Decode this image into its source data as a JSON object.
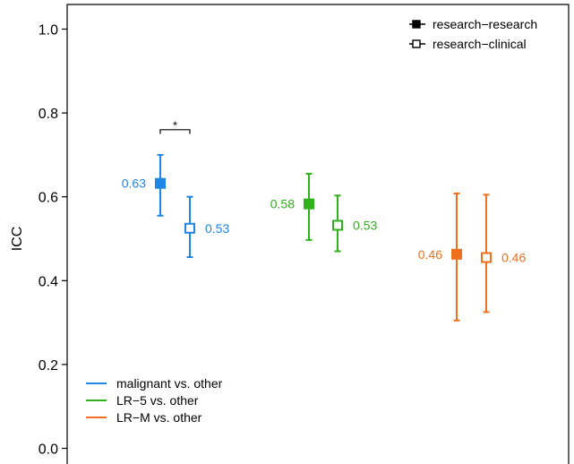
{
  "chart_data": {
    "type": "scatter",
    "ylabel": "ICC",
    "xlabel": "",
    "ylim": [
      0,
      1.0
    ],
    "yticks": [
      "0.0",
      "0.2",
      "0.4",
      "0.6",
      "0.8",
      "1.0"
    ],
    "grid": false,
    "legend_comparison": {
      "placement": "top-right",
      "items": [
        {
          "label": "research−research",
          "marker": "filled-square"
        },
        {
          "label": "research−clinical",
          "marker": "open-square"
        }
      ]
    },
    "legend_groups": {
      "placement": "bottom-left",
      "items": [
        {
          "label": "malignant vs. other",
          "color": "#1f86e8"
        },
        {
          "label": "LR−5 vs. other",
          "color": "#2fb11b"
        },
        {
          "label": "LR−M vs. other",
          "color": "#f0701e"
        }
      ]
    },
    "groups": [
      {
        "name": "malignant vs. other",
        "color": "#1f86e8",
        "points": [
          {
            "comparison": "research−research",
            "filled": true,
            "y": 0.632,
            "lower": 0.555,
            "upper": 0.7,
            "label": "0.63",
            "label_side": "left"
          },
          {
            "comparison": "research−clinical",
            "filled": false,
            "y": 0.525,
            "lower": 0.456,
            "upper": 0.6,
            "label": "0.53",
            "label_side": "right"
          }
        ],
        "significance": {
          "text": "*",
          "y": 0.765
        }
      },
      {
        "name": "LR−5 vs. other",
        "color": "#2fb11b",
        "points": [
          {
            "comparison": "research−research",
            "filled": true,
            "y": 0.583,
            "lower": 0.497,
            "upper": 0.655,
            "label": "0.58",
            "label_side": "left"
          },
          {
            "comparison": "research−clinical",
            "filled": false,
            "y": 0.532,
            "lower": 0.47,
            "upper": 0.603,
            "label": "0.53",
            "label_side": "right"
          }
        ]
      },
      {
        "name": "LR−M vs. other",
        "color": "#f0701e",
        "points": [
          {
            "comparison": "research−research",
            "filled": true,
            "y": 0.463,
            "lower": 0.305,
            "upper": 0.608,
            "label": "0.46",
            "label_side": "left"
          },
          {
            "comparison": "research−clinical",
            "filled": false,
            "y": 0.455,
            "lower": 0.325,
            "upper": 0.605,
            "label": "0.46",
            "label_side": "right"
          }
        ]
      }
    ]
  }
}
